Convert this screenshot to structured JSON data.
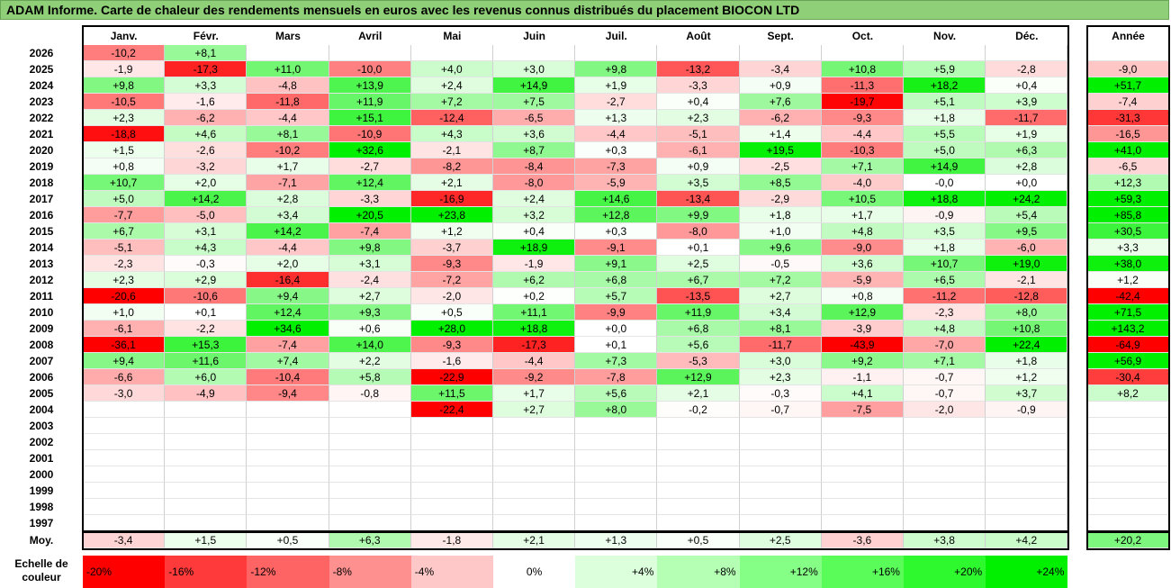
{
  "title": "ADAM Informe. Carte de chaleur des rendements mensuels en euros avec les revenus connus distribués du placement BIOCON LTD",
  "chart_data": {
    "type": "heatmap",
    "months": [
      "Janv.",
      "Févr.",
      "Mars",
      "Avril",
      "Mai",
      "Juin",
      "Juil.",
      "Août",
      "Sept.",
      "Oct.",
      "Nov.",
      "Déc."
    ],
    "year_header": "Année",
    "avg_label": "Moy.",
    "rows": [
      {
        "year": "2026",
        "values": [
          "-10,2",
          "+8,1",
          "",
          "",
          "",
          "",
          "",
          "",
          "",
          "",
          "",
          ""
        ],
        "annual": ""
      },
      {
        "year": "2025",
        "values": [
          "-1,9",
          "-17,3",
          "+11,0",
          "-10,0",
          "+4,0",
          "+3,0",
          "+9,8",
          "-13,2",
          "-3,4",
          "+10,8",
          "+5,9",
          "-2,8"
        ],
        "annual": "-9,0"
      },
      {
        "year": "2024",
        "values": [
          "+9,8",
          "+3,3",
          "-4,8",
          "+13,9",
          "+2,4",
          "+14,9",
          "+1,9",
          "-3,3",
          "+0,9",
          "-11,3",
          "+18,2",
          "+0,4"
        ],
        "annual": "+51,7"
      },
      {
        "year": "2023",
        "values": [
          "-10,5",
          "-1,6",
          "-11,8",
          "+11,9",
          "+7,2",
          "+7,5",
          "-2,7",
          "+0,4",
          "+7,6",
          "-19,7",
          "+5,1",
          "+3,9"
        ],
        "annual": "-7,4"
      },
      {
        "year": "2022",
        "values": [
          "+2,3",
          "-6,2",
          "-4,4",
          "+15,1",
          "-12,4",
          "-6,5",
          "+1,3",
          "+2,3",
          "-6,2",
          "-9,3",
          "+1,8",
          "-11,7"
        ],
        "annual": "-31,3"
      },
      {
        "year": "2021",
        "values": [
          "-18,8",
          "+4,6",
          "+8,1",
          "-10,9",
          "+4,3",
          "+3,6",
          "-4,4",
          "-5,1",
          "+1,4",
          "-4,4",
          "+5,5",
          "+1,9"
        ],
        "annual": "-16,5"
      },
      {
        "year": "2020",
        "values": [
          "+1,5",
          "-2,6",
          "-10,2",
          "+32,6",
          "-2,1",
          "+8,7",
          "+0,3",
          "-6,1",
          "+19,5",
          "-10,3",
          "+5,0",
          "+6,3"
        ],
        "annual": "+41,0"
      },
      {
        "year": "2019",
        "values": [
          "+0,8",
          "-3,2",
          "+1,7",
          "-2,7",
          "-8,2",
          "-8,4",
          "-7,3",
          "+0,9",
          "-2,5",
          "+7,1",
          "+14,9",
          "+2,8"
        ],
        "annual": "-6,5"
      },
      {
        "year": "2018",
        "values": [
          "+10,7",
          "+2,0",
          "-7,1",
          "+12,4",
          "+2,1",
          "-8,0",
          "-5,9",
          "+3,5",
          "+8,5",
          "-4,0",
          "-0,0",
          "+0,0"
        ],
        "annual": "+12,3"
      },
      {
        "year": "2017",
        "values": [
          "+5,0",
          "+14,2",
          "+2,8",
          "-3,3",
          "-16,9",
          "+2,4",
          "+14,6",
          "-13,4",
          "-2,9",
          "+10,5",
          "+18,8",
          "+24,2"
        ],
        "annual": "+59,3"
      },
      {
        "year": "2016",
        "values": [
          "-7,7",
          "-5,0",
          "+3,4",
          "+20,5",
          "+23,8",
          "+3,2",
          "+12,8",
          "+9,9",
          "+1,8",
          "+1,7",
          "-0,9",
          "+5,4"
        ],
        "annual": "+85,8"
      },
      {
        "year": "2015",
        "values": [
          "+6,7",
          "+3,1",
          "+14,2",
          "-7,4",
          "+1,2",
          "+0,4",
          "+0,3",
          "-8,0",
          "+1,0",
          "+4,8",
          "+3,5",
          "+9,5"
        ],
        "annual": "+30,5"
      },
      {
        "year": "2014",
        "values": [
          "-5,1",
          "+4,3",
          "-4,4",
          "+9,8",
          "-3,7",
          "+18,9",
          "-9,1",
          "+0,1",
          "+9,6",
          "-9,0",
          "+1,8",
          "-6,0"
        ],
        "annual": "+3,3"
      },
      {
        "year": "2013",
        "values": [
          "-2,3",
          "-0,3",
          "+2,0",
          "+3,1",
          "-9,3",
          "-1,9",
          "+9,1",
          "+2,5",
          "-0,5",
          "+3,6",
          "+10,7",
          "+19,0"
        ],
        "annual": "+38,0"
      },
      {
        "year": "2012",
        "values": [
          "+2,3",
          "+2,9",
          "-16,4",
          "-2,4",
          "-7,2",
          "+6,2",
          "+6,8",
          "+6,7",
          "+7,2",
          "-5,9",
          "+6,5",
          "-2,1"
        ],
        "annual": "+1,2"
      },
      {
        "year": "2011",
        "values": [
          "-20,6",
          "-10,6",
          "+9,4",
          "+2,7",
          "-2,0",
          "+0,2",
          "+5,7",
          "-13,5",
          "+2,7",
          "+0,8",
          "-11,2",
          "-12,8"
        ],
        "annual": "-42,4"
      },
      {
        "year": "2010",
        "values": [
          "+1,0",
          "+0,1",
          "+12,4",
          "+9,3",
          "+0,5",
          "+11,1",
          "-9,9",
          "+11,9",
          "+3,4",
          "+12,9",
          "-2,3",
          "+8,0"
        ],
        "annual": "+71,5"
      },
      {
        "year": "2009",
        "values": [
          "-6,1",
          "-2,2",
          "+34,6",
          "+0,6",
          "+28,0",
          "+18,8",
          "+0,0",
          "+6,8",
          "+8,1",
          "-3,9",
          "+4,8",
          "+10,8"
        ],
        "annual": "+143,2"
      },
      {
        "year": "2008",
        "values": [
          "-36,1",
          "+15,3",
          "-7,4",
          "+14,0",
          "-9,3",
          "-17,3",
          "+0,1",
          "+5,6",
          "-11,7",
          "-43,9",
          "-7,0",
          "+22,4"
        ],
        "annual": "-64,9"
      },
      {
        "year": "2007",
        "values": [
          "+9,4",
          "+11,6",
          "+7,4",
          "+2,2",
          "-1,6",
          "-4,4",
          "+7,3",
          "-5,3",
          "+3,0",
          "+9,2",
          "+7,1",
          "+1,8"
        ],
        "annual": "+56,9"
      },
      {
        "year": "2006",
        "values": [
          "-6,6",
          "+6,0",
          "-10,4",
          "+5,8",
          "-22,9",
          "-9,2",
          "-7,8",
          "+12,9",
          "+2,3",
          "-1,1",
          "-0,7",
          "+1,2"
        ],
        "annual": "-30,4"
      },
      {
        "year": "2005",
        "values": [
          "-3,0",
          "-4,9",
          "-9,4",
          "-0,8",
          "+11,5",
          "+1,7",
          "+5,6",
          "+2,1",
          "-0,3",
          "+4,1",
          "-0,7",
          "+3,7"
        ],
        "annual": "+8,2"
      },
      {
        "year": "2004",
        "values": [
          "",
          "",
          "",
          "",
          "-22,4",
          "+2,7",
          "+8,0",
          "-0,2",
          "-0,7",
          "-7,5",
          "-2,0",
          "-0,9"
        ],
        "annual": ""
      },
      {
        "year": "2003",
        "values": [
          "",
          "",
          "",
          "",
          "",
          "",
          "",
          "",
          "",
          "",
          "",
          ""
        ],
        "annual": ""
      },
      {
        "year": "2002",
        "values": [
          "",
          "",
          "",
          "",
          "",
          "",
          "",
          "",
          "",
          "",
          "",
          ""
        ],
        "annual": ""
      },
      {
        "year": "2001",
        "values": [
          "",
          "",
          "",
          "",
          "",
          "",
          "",
          "",
          "",
          "",
          "",
          ""
        ],
        "annual": ""
      },
      {
        "year": "2000",
        "values": [
          "",
          "",
          "",
          "",
          "",
          "",
          "",
          "",
          "",
          "",
          "",
          ""
        ],
        "annual": ""
      },
      {
        "year": "1999",
        "values": [
          "",
          "",
          "",
          "",
          "",
          "",
          "",
          "",
          "",
          "",
          "",
          ""
        ],
        "annual": ""
      },
      {
        "year": "1998",
        "values": [
          "",
          "",
          "",
          "",
          "",
          "",
          "",
          "",
          "",
          "",
          "",
          ""
        ],
        "annual": ""
      },
      {
        "year": "1997",
        "values": [
          "",
          "",
          "",
          "",
          "",
          "",
          "",
          "",
          "",
          "",
          "",
          ""
        ],
        "annual": ""
      }
    ],
    "averages": [
      "-3,4",
      "+1,5",
      "+0,5",
      "+6,3",
      "-1,8",
      "+2,1",
      "+1,3",
      "+0,5",
      "+2,5",
      "-3,6",
      "+3,8",
      "+4,2"
    ],
    "average_annual": "+20,2",
    "legend": {
      "title": "Echelle de couleur",
      "steps": [
        "-20%",
        "-16%",
        "-12%",
        "-8%",
        "-4%",
        "0%",
        "+4%",
        "+8%",
        "+12%",
        "+16%",
        "+20%",
        "+24%"
      ],
      "colors": [
        "#ff0000",
        "#ff3a3a",
        "#ff6464",
        "#ff9090",
        "#ffc8c8",
        "#ffffff",
        "#dcffdc",
        "#b4ffb4",
        "#86ff86",
        "#5afc5a",
        "#2ef82e",
        "#00f000"
      ]
    },
    "color_scale": {
      "negative": "#ff0000",
      "zero": "#ffffff",
      "positive": "#00f000"
    }
  }
}
